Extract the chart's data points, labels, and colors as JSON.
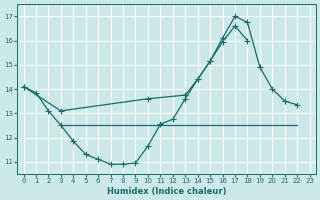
{
  "xlabel": "Humidex (Indice chaleur)",
  "bg_color": "#cce8e8",
  "grid_color": "#ffffff",
  "line_color": "#1a6b6b",
  "xlim": [
    -0.5,
    23.5
  ],
  "ylim": [
    10.5,
    17.5
  ],
  "yticks": [
    11,
    12,
    13,
    14,
    15,
    16,
    17
  ],
  "xticks": [
    0,
    1,
    2,
    3,
    4,
    5,
    6,
    7,
    8,
    9,
    10,
    11,
    12,
    13,
    14,
    15,
    16,
    17,
    18,
    19,
    20,
    21,
    22,
    23
  ],
  "line1_x": [
    0,
    1,
    2,
    3,
    4,
    5,
    6,
    7,
    8,
    9,
    10,
    11,
    12,
    13,
    14,
    15,
    16,
    17,
    18,
    19,
    20,
    21,
    22
  ],
  "line1_y": [
    14.1,
    13.85,
    13.1,
    12.5,
    11.85,
    11.3,
    11.1,
    10.9,
    10.9,
    10.95,
    11.65,
    12.55,
    12.75,
    13.6,
    14.4,
    15.15,
    16.1,
    17.0,
    16.75,
    14.9,
    14.0,
    13.5,
    13.35
  ],
  "line2_x": [
    0,
    3,
    10,
    13,
    14,
    15,
    16,
    17,
    18
  ],
  "line2_y": [
    14.1,
    13.1,
    13.6,
    13.75,
    14.4,
    15.15,
    15.95,
    16.6,
    16.0
  ],
  "line3_x": [
    3,
    10,
    22
  ],
  "line3_y": [
    12.5,
    12.5,
    12.5
  ]
}
